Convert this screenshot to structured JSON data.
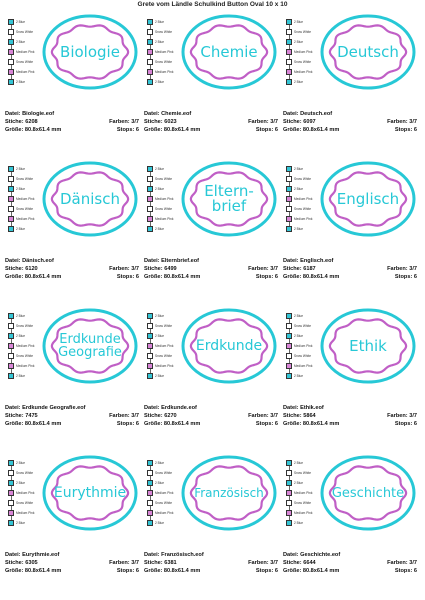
{
  "title": "Grete vom Ländle Schulkind Button Oval 10 x 10",
  "colors": {
    "outer": "#27c8d6",
    "inner": "#c05fc6",
    "fill": "#ffffff",
    "text": "#27c8d6"
  },
  "swatch_list": [
    {
      "label": "2 Blue",
      "color": "#35c6d6"
    },
    {
      "label": "Snow White",
      "color": "#ffffff"
    },
    {
      "label": "2 Blue",
      "color": "#35c6d6"
    },
    {
      "label": "Medium Pink",
      "color": "#d986d7"
    },
    {
      "label": "Snow White",
      "color": "#ffffff"
    },
    {
      "label": "Medium Pink",
      "color": "#d986d7"
    },
    {
      "label": "2 Blue",
      "color": "#35c6d6"
    }
  ],
  "labels": {
    "file": "Datei:",
    "stitches": "Stiche:",
    "size": "Größe:",
    "colors": "Farben:",
    "stops": "Stops:"
  },
  "designs": [
    {
      "text": "Biologie",
      "file": "Biologie.eof",
      "stitches": "6208",
      "size": "80.8x61.4 mm",
      "colors": "3/7",
      "stops": "6",
      "font_size": 15
    },
    {
      "text": "Chemie",
      "file": "Chemie.eof",
      "stitches": "6023",
      "size": "80.8x61.4 mm",
      "colors": "3/7",
      "stops": "6",
      "font_size": 15
    },
    {
      "text": "Deutsch",
      "file": "Deutsch.eof",
      "stitches": "6097",
      "size": "80.8x61.4 mm",
      "colors": "3/7",
      "stops": "6",
      "font_size": 15
    },
    {
      "text": "Dänisch",
      "file": "Dänisch.eof",
      "stitches": "6120",
      "size": "80.8x61.4 mm",
      "colors": "3/7",
      "stops": "6",
      "font_size": 15
    },
    {
      "text": "Eltern-\nbrief",
      "file": "Elternbrief.eof",
      "stitches": "6499",
      "size": "80.8x61.4 mm",
      "colors": "3/7",
      "stops": "6",
      "font_size": 15
    },
    {
      "text": "Englisch",
      "file": "Englisch.eof",
      "stitches": "6187",
      "size": "80.8x61.4 mm",
      "colors": "3/7",
      "stops": "6",
      "font_size": 15
    },
    {
      "text": "Erdkunde\nGeografie",
      "file": "Erdkunde Geografie.eof",
      "stitches": "7475",
      "size": "80.8x61.4 mm",
      "colors": "3/7",
      "stops": "6",
      "font_size": 13
    },
    {
      "text": "Erdkunde",
      "file": "Erdkunde.eof",
      "stitches": "6270",
      "size": "80.8x61.4 mm",
      "colors": "3/7",
      "stops": "6",
      "font_size": 14
    },
    {
      "text": "Ethik",
      "file": "Ethik.eof",
      "stitches": "5864",
      "size": "80.8x61.4 mm",
      "colors": "3/7",
      "stops": "6",
      "font_size": 15
    },
    {
      "text": "Eurythmie",
      "file": "Eurythmie.eof",
      "stitches": "6305",
      "size": "80.8x61.4 mm",
      "colors": "3/7",
      "stops": "6",
      "font_size": 14
    },
    {
      "text": "Französisch",
      "file": "Französisch.eof",
      "stitches": "6381",
      "size": "80.8x61.4 mm",
      "colors": "3/7",
      "stops": "6",
      "font_size": 12
    },
    {
      "text": "Geschichte",
      "file": "Geschichte.eof",
      "stitches": "6644",
      "size": "80.8x61.4 mm",
      "colors": "3/7",
      "stops": "6",
      "font_size": 13
    }
  ]
}
